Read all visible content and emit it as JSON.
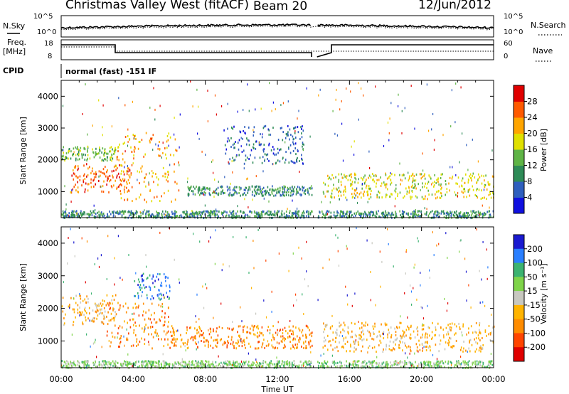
{
  "header": {
    "station": "Christmas Valley West (fitACF)",
    "beam": "Beam 20",
    "date": "12/Jun/2012"
  },
  "status_panel": {
    "nsky_label": "N.Sky",
    "nsearch_label": "N.Search",
    "noise_ticks_left": [
      "10^5",
      "10^0"
    ],
    "noise_ticks_right": [
      "10^5",
      "10^0"
    ],
    "freq_label_1": "Freq.",
    "freq_label_2": "[MHz]",
    "freq_ticks": [
      "18",
      "8"
    ],
    "nave_label": "Nave",
    "nave_ticks": [
      "60",
      "0"
    ],
    "cpid_label": "CPID",
    "cpid_value": "normal (fast) -151 IF"
  },
  "chart_data": [
    {
      "type": "heatmap",
      "panel": "power",
      "ylabel": "Slant Range [km]",
      "y_ticks": [
        "1000",
        "2000",
        "3000",
        "4000"
      ],
      "ylim": [
        180,
        4500
      ],
      "x_ticks": [
        "00:00",
        "04:00",
        "08:00",
        "12:00",
        "16:00",
        "20:00",
        "00:00"
      ],
      "xlim_hours": [
        0,
        24
      ],
      "colorbar": {
        "label": "Power [dB]",
        "ticks": [
          "4",
          "8",
          "12",
          "16",
          "20",
          "24",
          "28"
        ],
        "colors": [
          "#1010e0",
          "#2f5fbe",
          "#2e8b57",
          "#5fb446",
          "#e0e000",
          "#ffa500",
          "#ff5a00",
          "#e00000"
        ]
      },
      "features_range_km": [
        {
          "hours": [
            0.0,
            3.0
          ],
          "range": [
            2000,
            2450
          ],
          "level": 3
        },
        {
          "hours": [
            0.5,
            4.0
          ],
          "range": [
            1000,
            1900
          ],
          "level": 6
        },
        {
          "hours": [
            3.0,
            6.5
          ],
          "range": [
            700,
            2900
          ],
          "level": 5
        },
        {
          "hours": [
            7.0,
            14.0
          ],
          "range": [
            900,
            1200
          ],
          "level": 2
        },
        {
          "hours": [
            9.0,
            13.5
          ],
          "range": [
            1900,
            3100
          ],
          "level": 1
        },
        {
          "hours": [
            14.5,
            24.0
          ],
          "range": [
            800,
            1600
          ],
          "level": 4
        },
        {
          "hours": [
            0.0,
            24.0
          ],
          "range": [
            200,
            420
          ],
          "level": 2
        }
      ]
    },
    {
      "type": "heatmap",
      "panel": "velocity",
      "ylabel": "Slant Range [km]",
      "y_ticks": [
        "1000",
        "2000",
        "3000",
        "4000"
      ],
      "ylim": [
        180,
        4500
      ],
      "x_ticks": [
        "00:00",
        "04:00",
        "08:00",
        "12:00",
        "16:00",
        "20:00",
        "00:00"
      ],
      "xlim_hours": [
        0,
        24
      ],
      "xlabel": "Time UT",
      "colorbar": {
        "label": "Velocity [m s⁻¹]",
        "ticks": [
          "200",
          "100",
          "50",
          "15",
          "-15",
          "-50",
          "-100",
          "-200"
        ],
        "colors": [
          "#1a1ad0",
          "#2a7fff",
          "#3cb371",
          "#7fd44a",
          "#c8c8c0",
          "#ffb400",
          "#ff8c00",
          "#ff4500",
          "#e00000"
        ]
      },
      "features_range_km": [
        {
          "hours": [
            0.0,
            3.0
          ],
          "range": [
            1500,
            2450
          ],
          "velocity": "-15"
        },
        {
          "hours": [
            2.5,
            6.0
          ],
          "range": [
            800,
            2200
          ],
          "velocity": "-50"
        },
        {
          "hours": [
            4.0,
            6.0
          ],
          "range": [
            2300,
            3100
          ],
          "velocity": "200"
        },
        {
          "hours": [
            6.0,
            14.0
          ],
          "range": [
            800,
            1500
          ],
          "velocity": "-50"
        },
        {
          "hours": [
            14.5,
            24.0
          ],
          "range": [
            700,
            1600
          ],
          "velocity": "-15"
        },
        {
          "hours": [
            0.0,
            24.0
          ],
          "range": [
            200,
            420
          ],
          "velocity": "50"
        }
      ]
    }
  ],
  "colors": {
    "axis": "#000000",
    "background": "#ffffff"
  }
}
